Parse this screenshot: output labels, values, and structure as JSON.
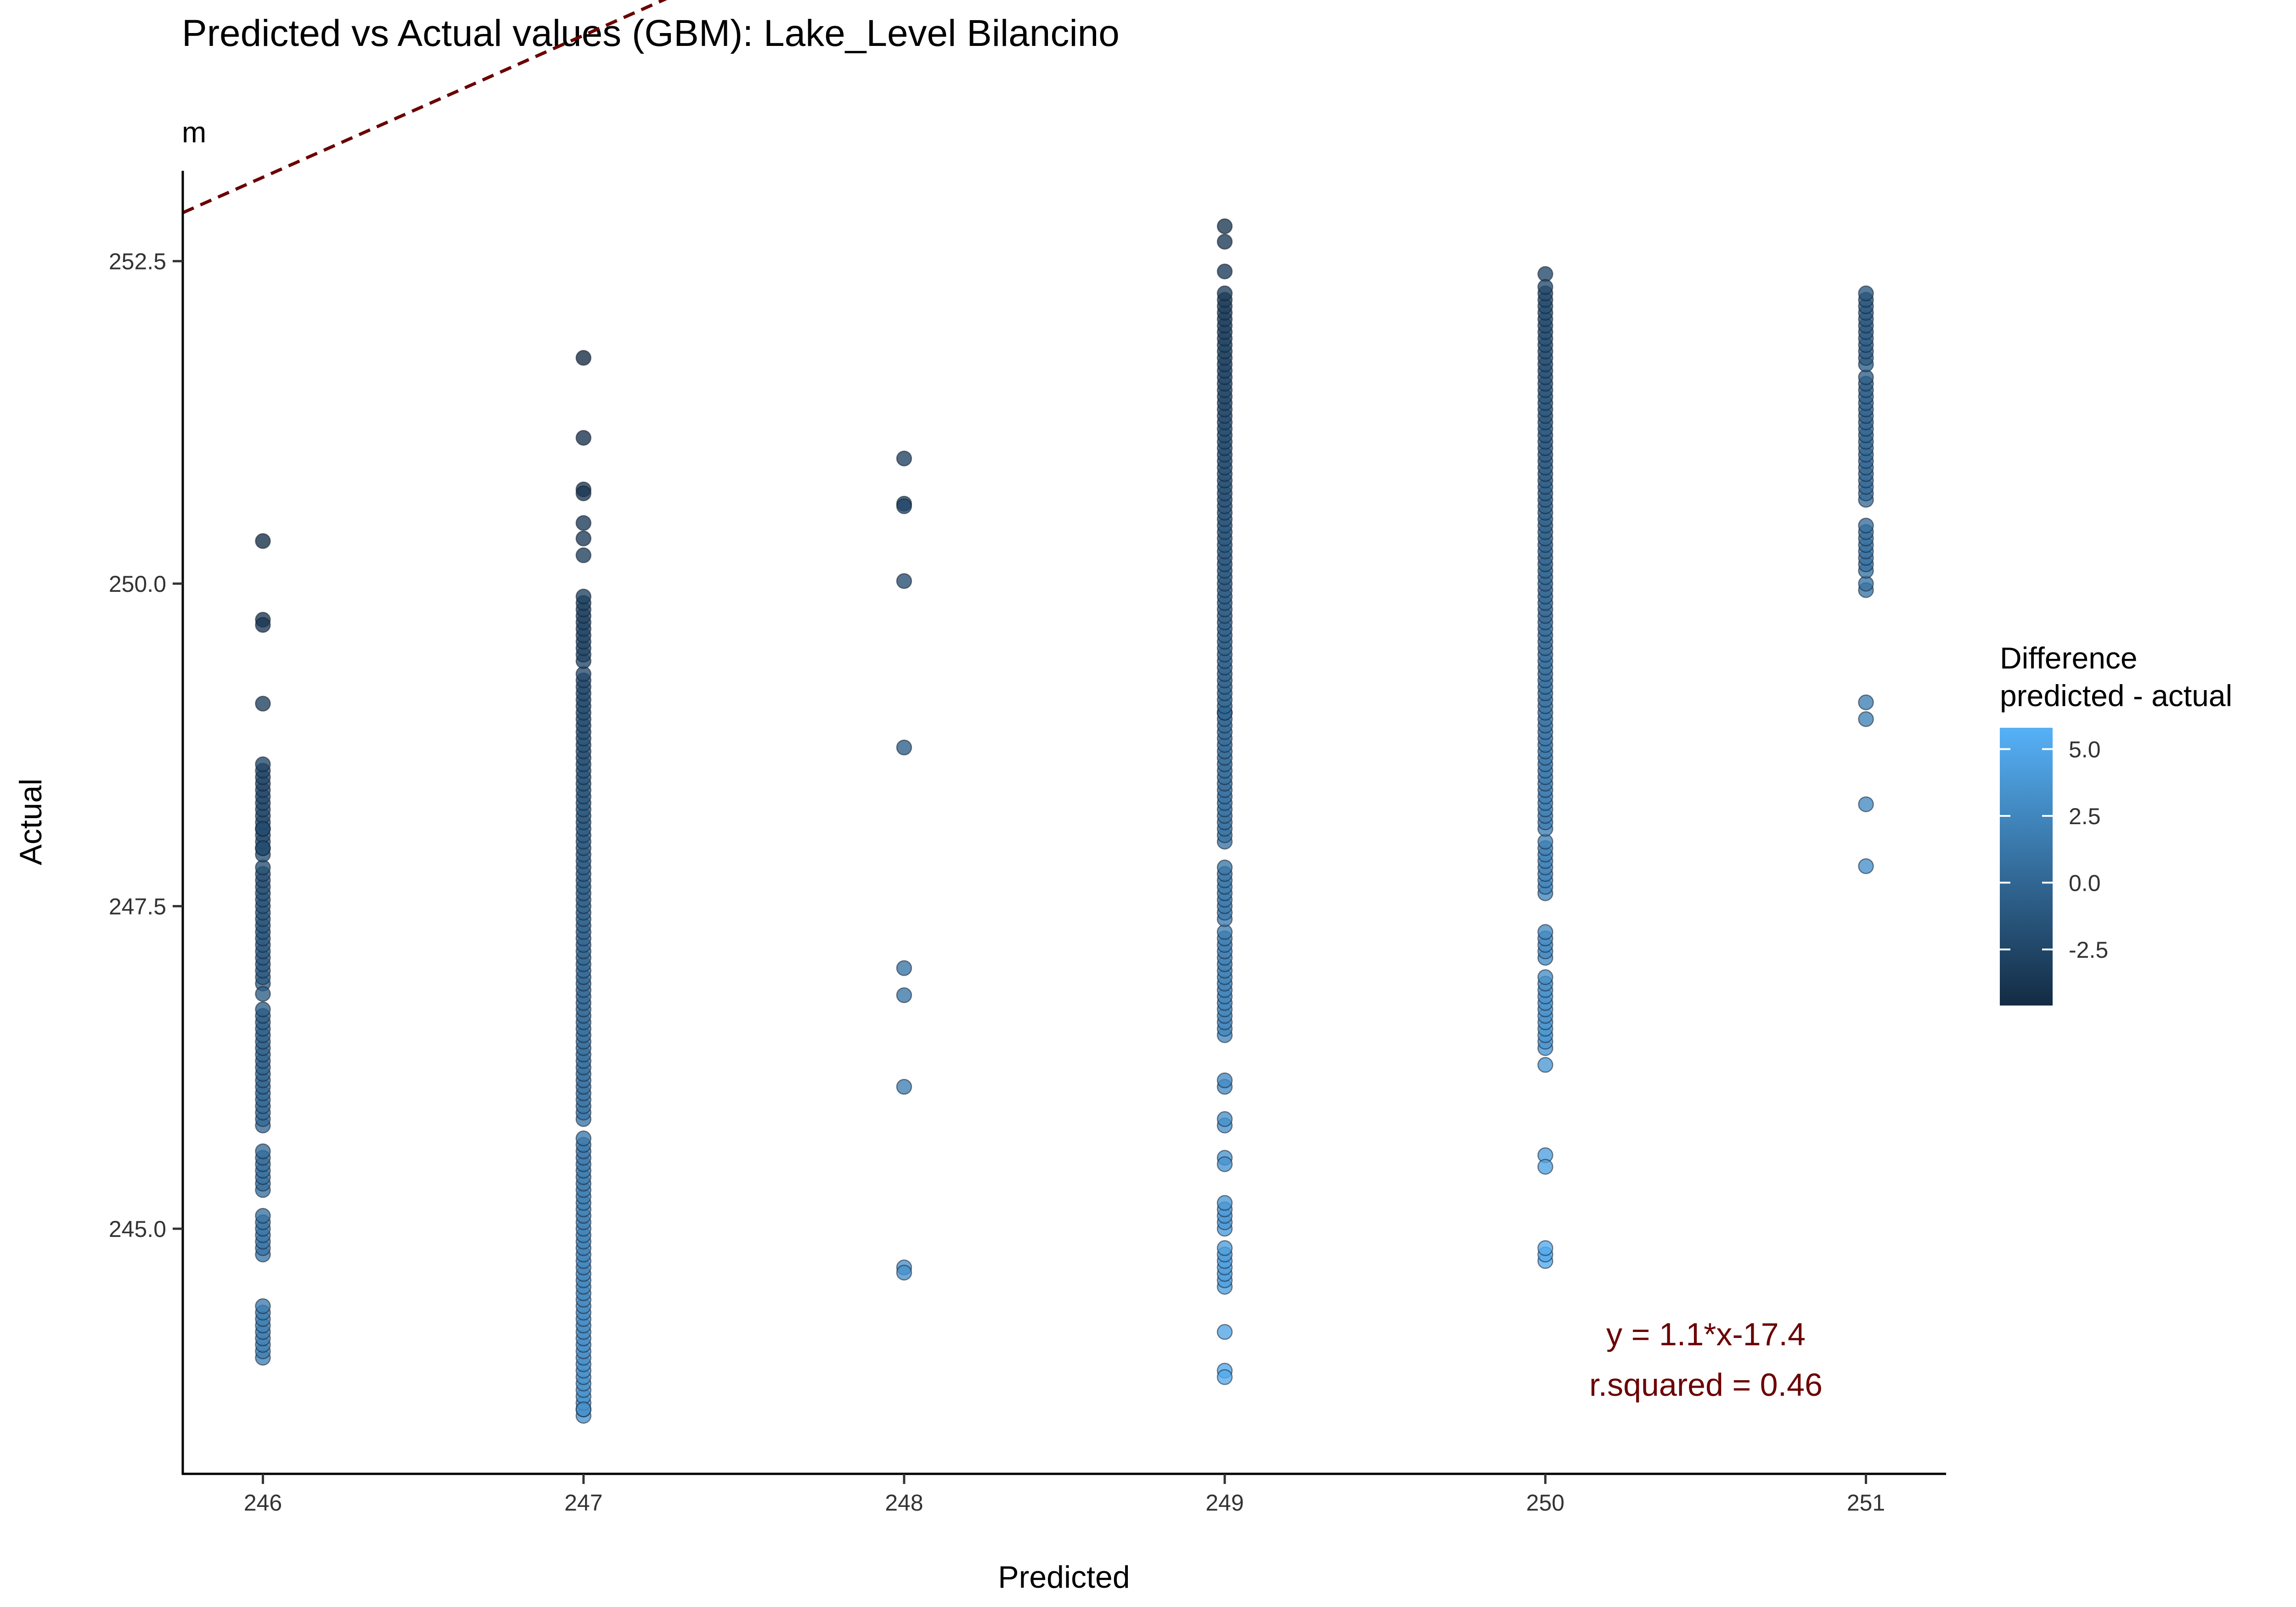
{
  "chart_data": {
    "type": "scatter",
    "title": "Predicted vs Actual values (GBM): Lake_Level Bilancino",
    "subtitle": "m",
    "xlabel": "Predicted",
    "ylabel": "Actual",
    "xlim": [
      245.75,
      251.25
    ],
    "ylim": [
      243.1,
      253.2
    ],
    "xticks": [
      "246",
      "247",
      "248",
      "249",
      "250",
      "251"
    ],
    "xtick_values": [
      246,
      247,
      248,
      249,
      250,
      251
    ],
    "yticks": [
      "245.0",
      "247.5",
      "250.0",
      "252.5"
    ],
    "ytick_values": [
      245.0,
      247.5,
      250.0,
      252.5
    ],
    "grid": false,
    "legend": {
      "title_line1": "Difference",
      "title_line2": "predicted - actual",
      "placement": "right",
      "color_low": "#132b43",
      "color_high": "#56b1f7",
      "range": [
        -4.6,
        5.8
      ],
      "labels": [
        "5.0",
        "2.5",
        "0.0",
        "-2.5"
      ],
      "label_values": [
        5.0,
        2.5,
        0.0,
        -2.5
      ]
    },
    "regression": {
      "slope": 1.1,
      "intercept": -17.4,
      "line_color": "#6b0000",
      "line_style": "dashed",
      "equation_label": "y = 1.1*x-17.4",
      "r2_label": "r.squared = 0.46"
    },
    "series": [
      {
        "x_value": 246,
        "ranges": [
          [
            244.0,
            244.4
          ],
          [
            244.8,
            245.1
          ],
          [
            245.3,
            245.6
          ],
          [
            245.8,
            246.7
          ],
          [
            246.9,
            247.8
          ],
          [
            247.9,
            248.6
          ]
        ],
        "points": [
          250.33,
          249.72,
          249.68,
          249.07,
          248.1,
          247.95,
          246.82
        ]
      },
      {
        "x_value": 247,
        "ranges": [
          [
            243.55,
            243.8
          ],
          [
            243.85,
            244.6
          ],
          [
            244.65,
            245.7
          ],
          [
            245.85,
            249.3
          ],
          [
            249.4,
            249.9
          ]
        ],
        "points": [
          251.75,
          251.13,
          250.73,
          250.7,
          250.47,
          250.35,
          250.22,
          243.6
        ]
      },
      {
        "x_value": 248,
        "ranges": [],
        "points": [
          250.97,
          250.62,
          250.6,
          250.02,
          248.73,
          247.02,
          246.81,
          246.1,
          244.7,
          244.66
        ]
      },
      {
        "x_value": 249,
        "ranges": [
          [
            244.55,
            244.85
          ],
          [
            245.0,
            245.2
          ],
          [
            245.8,
            245.85
          ],
          [
            246.1,
            246.15
          ],
          [
            246.5,
            247.3
          ],
          [
            247.4,
            247.8
          ],
          [
            248.0,
            249.0
          ],
          [
            249.0,
            252.25
          ]
        ],
        "points": [
          252.77,
          252.65,
          252.42,
          244.2,
          243.9,
          243.85,
          245.55,
          245.5
        ]
      },
      {
        "x_value": 250,
        "ranges": [
          [
            244.75,
            244.85
          ],
          [
            246.4,
            246.95
          ],
          [
            247.1,
            247.3
          ],
          [
            247.6,
            248.0
          ],
          [
            248.1,
            252.25
          ]
        ],
        "points": [
          252.4,
          252.3,
          245.57,
          245.48,
          246.27
        ]
      },
      {
        "x_value": 251,
        "ranges": [
          [
            249.95,
            250.0
          ],
          [
            250.1,
            250.45
          ],
          [
            250.65,
            251.6
          ],
          [
            251.7,
            252.25
          ]
        ],
        "points": [
          249.08,
          248.95,
          248.29,
          247.81
        ]
      }
    ]
  }
}
